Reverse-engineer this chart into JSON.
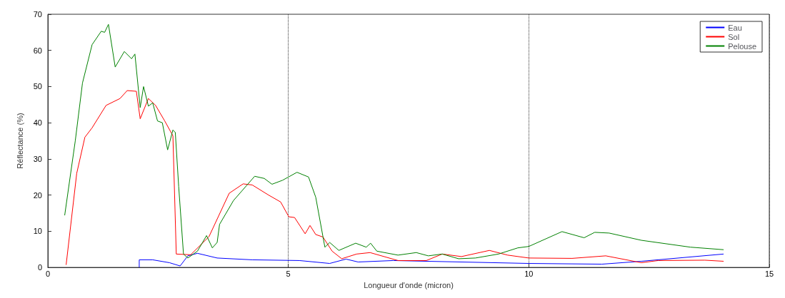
{
  "chart_data": {
    "type": "line",
    "xlabel": "Longueur d'onde (micron)",
    "ylabel": "Réflectance (%)",
    "xlim": [
      0,
      15
    ],
    "xticks": [
      0,
      5,
      10,
      15
    ],
    "ylim": [
      0,
      70
    ],
    "yticks": [
      0,
      10,
      20,
      30,
      40,
      50,
      60,
      70
    ],
    "grid": "x",
    "legend": "top right",
    "series": [
      {
        "name": "Eau",
        "color": "#0000ff",
        "x": [
          1.9,
          1.9,
          2.18,
          2.53,
          2.75,
          2.91,
          3.11,
          3.52,
          4.25,
          5.23,
          5.86,
          6.2,
          6.45,
          7.18,
          10.0,
          11.52,
          12.34,
          14.05
        ],
        "values": [
          0,
          2.1,
          2.1,
          1.3,
          0.4,
          3.2,
          3.9,
          2.6,
          2.1,
          1.9,
          1.1,
          2.3,
          1.5,
          1.9,
          1.1,
          0.9,
          1.7,
          3.7
        ]
      },
      {
        "name": "Sol",
        "color": "#ff0000",
        "x": [
          0.38,
          0.6,
          0.77,
          0.92,
          1.21,
          1.5,
          1.65,
          1.84,
          1.92,
          2.09,
          2.24,
          2.43,
          2.6,
          2.67,
          2.97,
          3.35,
          3.77,
          4.06,
          4.25,
          4.59,
          4.84,
          5.01,
          5.13,
          5.35,
          5.45,
          5.57,
          5.72,
          5.91,
          6.11,
          6.42,
          6.7,
          7.28,
          7.87,
          8.2,
          8.6,
          9.18,
          9.56,
          10.0,
          10.9,
          11.6,
          12.34,
          12.69,
          13.66,
          14.05
        ],
        "values": [
          0.7,
          26,
          36,
          38.6,
          44.8,
          46.7,
          48.9,
          48.7,
          41.1,
          46.7,
          44.8,
          40.5,
          36.4,
          3.7,
          3.5,
          8.5,
          20.5,
          23.1,
          22.8,
          20,
          18.1,
          14,
          13.8,
          9.3,
          11.6,
          9.1,
          8.4,
          4.5,
          2.4,
          3.7,
          4.1,
          1.9,
          1.9,
          3.7,
          3,
          4.7,
          3.4,
          2.6,
          2.5,
          3.2,
          1.3,
          1.9,
          2,
          1.7
        ]
      },
      {
        "name": "Pelouse",
        "color": "#008000",
        "x": [
          0.35,
          0.57,
          0.72,
          0.92,
          1.11,
          1.18,
          1.26,
          1.4,
          1.59,
          1.74,
          1.81,
          1.92,
          1.99,
          2.09,
          2.18,
          2.28,
          2.38,
          2.49,
          2.6,
          2.65,
          2.72,
          2.82,
          2.91,
          3.11,
          3.3,
          3.42,
          3.52,
          3.57,
          3.86,
          4.3,
          4.5,
          4.66,
          4.88,
          5.18,
          5.42,
          5.57,
          5.76,
          5.86,
          6.05,
          6.4,
          6.62,
          6.71,
          6.84,
          7.28,
          7.66,
          7.91,
          8.2,
          8.54,
          8.89,
          9.37,
          9.77,
          10.0,
          10.69,
          11.15,
          11.37,
          11.67,
          12.34,
          13.36,
          14.05
        ],
        "values": [
          14.4,
          35,
          51,
          61.6,
          65.3,
          65,
          67.2,
          55.4,
          59.7,
          57.7,
          59,
          44.2,
          50,
          44.6,
          45.5,
          40.5,
          40,
          32.5,
          38,
          37.3,
          22.4,
          3.7,
          2.6,
          4.5,
          8.8,
          5.4,
          6.9,
          11.9,
          18.5,
          25.2,
          24.6,
          23,
          24.1,
          26.3,
          25,
          19.4,
          5.6,
          6.9,
          4.7,
          6.7,
          5.6,
          6.7,
          4.5,
          3.4,
          4.1,
          3.2,
          3.7,
          2.4,
          2.6,
          3.7,
          5.4,
          5.8,
          9.9,
          8.2,
          9.7,
          9.5,
          7.5,
          5.6,
          4.9
        ]
      }
    ]
  }
}
